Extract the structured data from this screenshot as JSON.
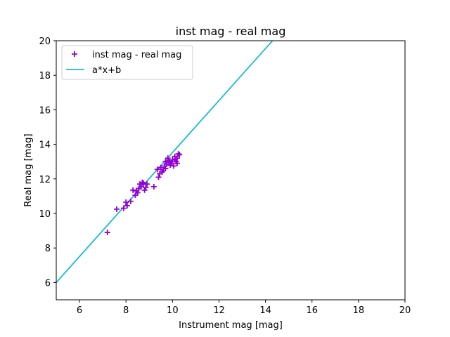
{
  "chart_data": {
    "type": "scatter",
    "title": "inst mag - real mag",
    "xlabel": "Instrument mag [mag]",
    "ylabel": "Real mag [mag]",
    "xlim": [
      5,
      20
    ],
    "ylim": [
      5,
      20
    ],
    "xticks": [
      6,
      8,
      10,
      12,
      14,
      16,
      18,
      20
    ],
    "yticks": [
      6,
      8,
      10,
      12,
      14,
      16,
      18,
      20
    ],
    "grid": false,
    "legend_position": "upper-left",
    "series": [
      {
        "name": "inst mag - real mag",
        "kind": "scatter",
        "marker": "plus",
        "color": "#9400d3",
        "x": [
          7.2,
          7.6,
          7.9,
          8.0,
          8.05,
          8.2,
          8.3,
          8.4,
          8.45,
          8.5,
          8.55,
          8.6,
          8.65,
          8.7,
          8.75,
          8.8,
          8.85,
          8.9,
          9.2,
          9.35,
          9.4,
          9.45,
          9.5,
          9.55,
          9.6,
          9.65,
          9.7,
          9.75,
          9.8,
          9.85,
          9.9,
          9.95,
          10.0,
          10.05,
          10.1,
          10.15,
          10.2,
          10.25,
          10.3,
          9.7,
          9.9,
          10.1,
          10.2
        ],
        "y": [
          8.9,
          10.25,
          10.3,
          10.65,
          10.45,
          10.7,
          11.35,
          11.05,
          11.3,
          11.2,
          11.45,
          11.7,
          11.55,
          11.8,
          11.75,
          11.35,
          11.5,
          11.7,
          11.55,
          12.55,
          12.1,
          12.3,
          12.65,
          12.4,
          12.5,
          12.75,
          13.0,
          12.85,
          13.2,
          13.05,
          12.8,
          12.9,
          13.1,
          12.75,
          13.3,
          13.0,
          13.2,
          13.45,
          13.4,
          12.6,
          12.95,
          13.15,
          12.9
        ]
      },
      {
        "name": "a*x+b",
        "kind": "line",
        "color": "#17becf",
        "x": [
          5.0,
          14.3
        ],
        "y": [
          6.0,
          20.0
        ]
      }
    ]
  }
}
